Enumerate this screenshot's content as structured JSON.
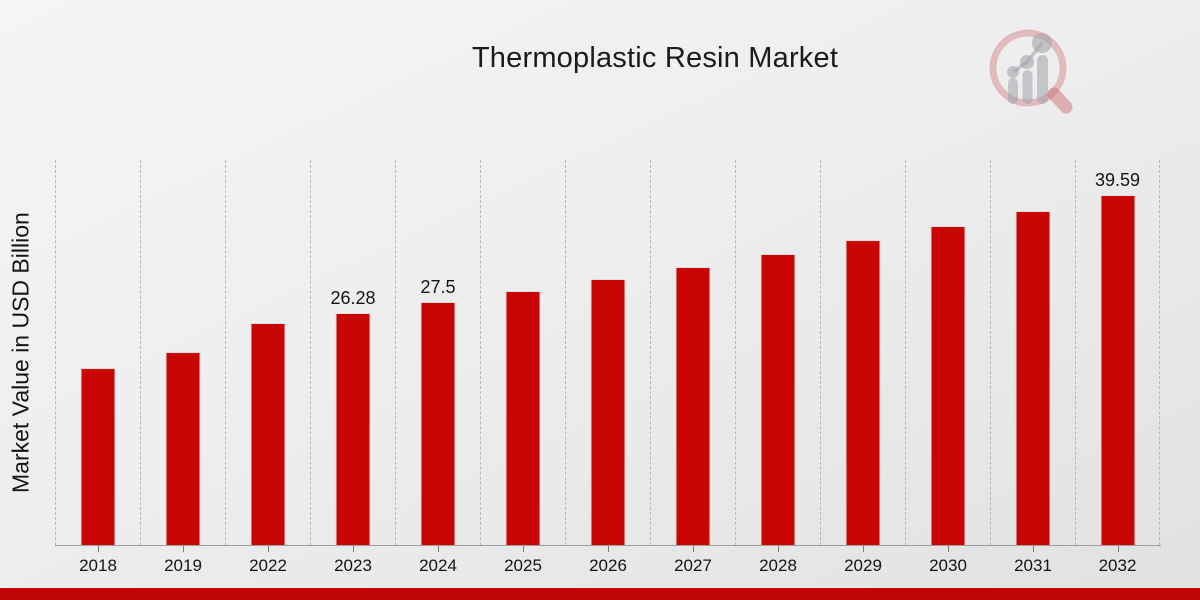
{
  "chart_data": {
    "type": "bar",
    "title": "Thermoplastic Resin Market",
    "xlabel": "",
    "ylabel": "Market Value in USD Billion",
    "categories": [
      "2018",
      "2019",
      "2022",
      "2023",
      "2024",
      "2025",
      "2026",
      "2027",
      "2028",
      "2029",
      "2030",
      "2031",
      "2032"
    ],
    "values": [
      20.1,
      21.9,
      25.11,
      26.28,
      27.5,
      28.78,
      30.12,
      31.52,
      32.99,
      34.53,
      36.14,
      37.83,
      39.59
    ],
    "data_labels": [
      "",
      "",
      "",
      "26.28",
      "27.5",
      "",
      "",
      "",
      "",
      "",
      "",
      "",
      "39.59"
    ],
    "ylim": [
      0,
      43.6
    ],
    "grid": "vertical-dashed",
    "legend": "none",
    "bar_color": "#c80404",
    "accent_strip_color": "#bf0404"
  },
  "branding": {
    "logo_name": "magnifier-bar-chart-watermark"
  }
}
